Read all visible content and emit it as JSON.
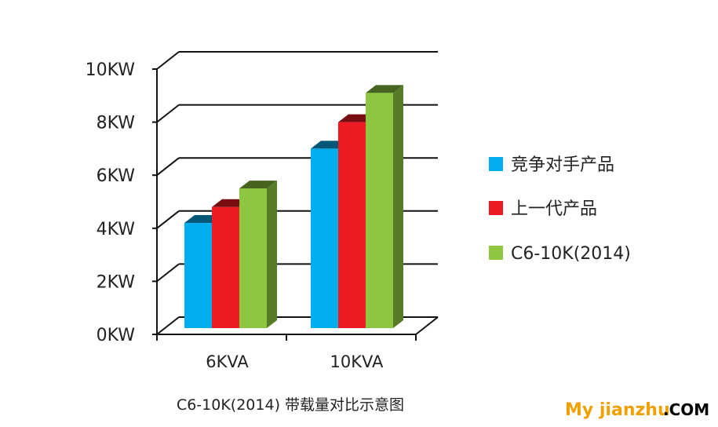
{
  "chart_data": {
    "type": "bar",
    "categories": [
      "6KVA",
      "10KVA"
    ],
    "series": [
      {
        "name": "竞争对手产品",
        "values": [
          4.2,
          7.0
        ],
        "color": "#00aeef"
      },
      {
        "name": "上一代产品",
        "values": [
          4.8,
          8.0
        ],
        "color": "#ed1c24"
      },
      {
        "name": "C6-10K(2014)",
        "values": [
          5.5,
          9.1
        ],
        "color": "#8dc63f"
      }
    ],
    "yticks": [
      "0KW",
      "2KW",
      "4KW",
      "6KW",
      "8KW",
      "10KW"
    ],
    "ylim": [
      0,
      10
    ],
    "grid": true,
    "legend": "right",
    "style": "3d"
  },
  "caption": "C6-10K(2014) 带载量对比示意图",
  "watermark": {
    "brand": "My jianzhu",
    "suffix": ".COM"
  }
}
